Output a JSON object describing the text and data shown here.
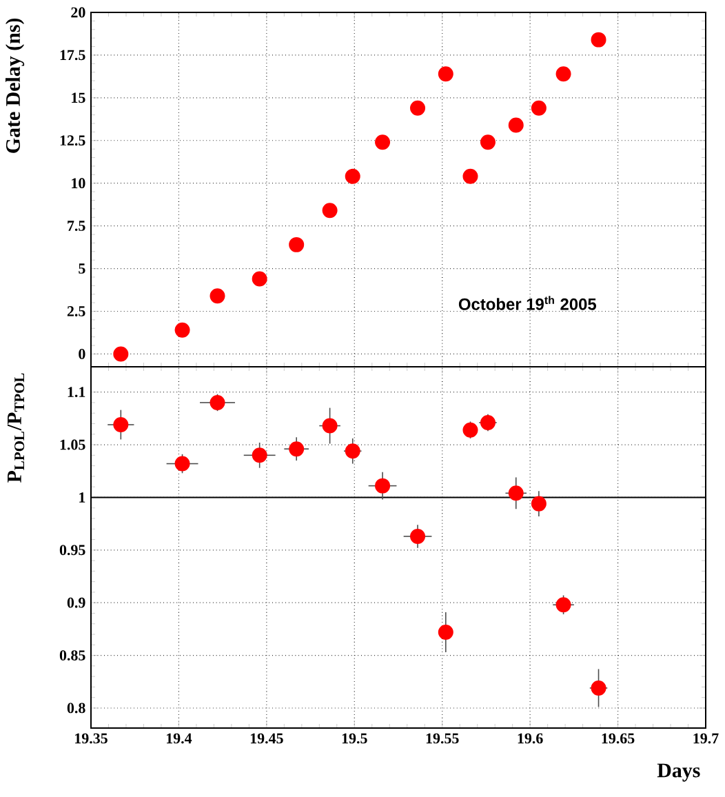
{
  "chart_data": [
    {
      "type": "scatter",
      "ylabel": "Gate Delay (ns)",
      "x": [
        19.367,
        19.402,
        19.422,
        19.446,
        19.467,
        19.486,
        19.499,
        19.516,
        19.536,
        19.552,
        19.566,
        19.576,
        19.592,
        19.605,
        19.619,
        19.639
      ],
      "values": [
        0,
        1.4,
        3.4,
        4.4,
        6.4,
        8.4,
        10.4,
        12.4,
        14.4,
        16.4,
        10.4,
        12.4,
        13.4,
        14.4,
        16.4,
        18.4
      ],
      "color": "#ff0000",
      "grid": true,
      "tick_labels": "y",
      "xlim": [
        19.35,
        19.7
      ],
      "ylim": [
        -0.75,
        20
      ],
      "xticks": [
        19.35,
        19.4,
        19.45,
        19.5,
        19.55,
        19.6,
        19.65,
        19.7
      ],
      "yticks": [
        0,
        2.5,
        5,
        7.5,
        10,
        12.5,
        15,
        17.5,
        20
      ],
      "annotations": [
        "October 19$^{th}$ 2005"
      ]
    },
    {
      "type": "scatter",
      "ylabel": "P$_{LPOL}$/P$_{TPOL}$",
      "xlabel": "Days",
      "x": [
        19.367,
        19.402,
        19.422,
        19.446,
        19.467,
        19.486,
        19.499,
        19.516,
        19.536,
        19.552,
        19.566,
        19.576,
        19.592,
        19.605,
        19.619,
        19.639
      ],
      "values": [
        1.069,
        1.032,
        1.09,
        1.04,
        1.046,
        1.068,
        1.044,
        1.011,
        0.963,
        0.872,
        1.064,
        1.071,
        1.004,
        0.994,
        0.898,
        0.819
      ],
      "errors": [
        0.014,
        0.009,
        0.008,
        0.012,
        0.011,
        0.017,
        0.012,
        0.013,
        0.011,
        0.019,
        0.008,
        0.008,
        0.015,
        0.012,
        0.009,
        0.018
      ],
      "xerrors": [
        0.0075,
        0.009,
        0.01,
        0.009,
        0.007,
        0.006,
        0.005,
        0.008,
        0.008,
        null,
        null,
        0.005,
        0.006,
        0.004,
        0.006,
        0.005
      ],
      "color": "#ff0000",
      "grid": true,
      "xlim": [
        19.35,
        19.7
      ],
      "ylim": [
        0.781,
        1.124
      ],
      "xticks": [
        19.35,
        19.4,
        19.45,
        19.5,
        19.55,
        19.6,
        19.65,
        19.7
      ],
      "yticks": [
        0.8,
        0.85,
        0.9,
        0.95,
        1,
        1.05,
        1.1
      ],
      "ref_lines": [
        {
          "axis": "y",
          "value": 1,
          "color": "#000000"
        }
      ]
    }
  ]
}
